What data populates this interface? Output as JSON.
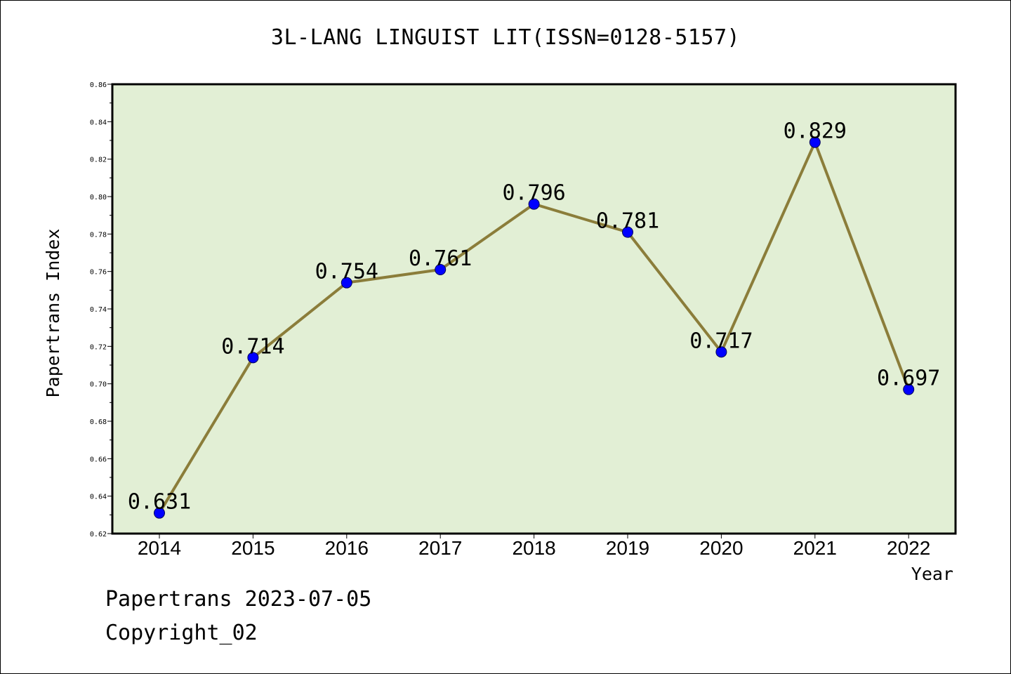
{
  "chart_data": {
    "type": "line",
    "title": "3L-LANG LINGUIST LIT(ISSN=0128-5157)",
    "xlabel": "Year",
    "ylabel": "Papertrans Index",
    "categories": [
      "2014",
      "2015",
      "2016",
      "2017",
      "2018",
      "2019",
      "2020",
      "2021",
      "2022"
    ],
    "values": [
      0.631,
      0.714,
      0.754,
      0.761,
      0.796,
      0.781,
      0.717,
      0.829,
      0.697
    ],
    "data_labels": [
      "0.631",
      "0.714",
      "0.754",
      "0.761",
      "0.796",
      "0.781",
      "0.717",
      "0.829",
      "0.697"
    ],
    "ylim": [
      0.62,
      0.86
    ],
    "yticks": [
      "0.62",
      "0.64",
      "0.66",
      "0.68",
      "0.70",
      "0.72",
      "0.74",
      "0.76",
      "0.78",
      "0.80",
      "0.82",
      "0.84",
      "0.86"
    ],
    "grid": false,
    "legend": "none",
    "colors": {
      "line": "#8b7d3a",
      "marker": "#0000ff",
      "plot_background": "#e2efd5"
    }
  },
  "footer": {
    "date_text": "Papertrans 2023-07-05",
    "copyright_text": "Copyright_02"
  }
}
